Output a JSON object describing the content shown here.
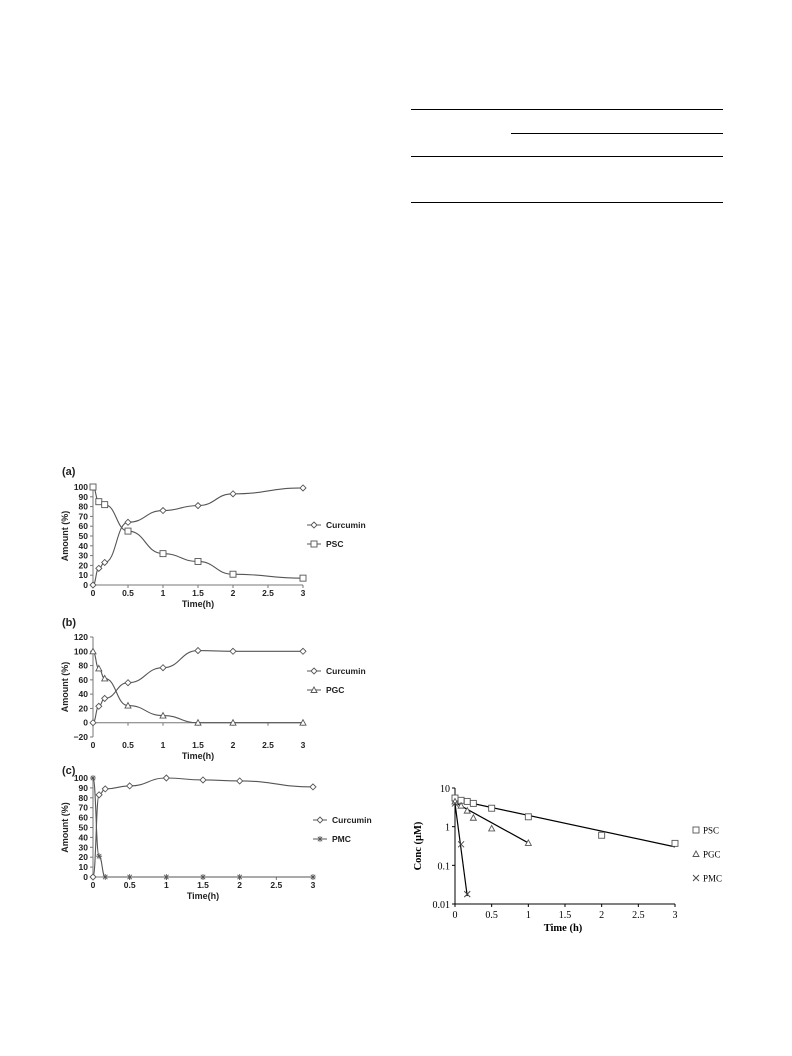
{
  "chart_data": [
    {
      "panel": "(a)",
      "type": "line",
      "xlabel": "Time(h)",
      "ylabel": "Amount (%)",
      "xlim": [
        0,
        3
      ],
      "ylim": [
        0,
        100
      ],
      "xticks": [
        0,
        0.5,
        1,
        1.5,
        2,
        2.5,
        3
      ],
      "yticks": [
        0,
        10,
        20,
        30,
        40,
        50,
        60,
        70,
        80,
        90,
        100
      ],
      "series": [
        {
          "name": "Curcumin",
          "marker": "diamond",
          "x": [
            0,
            0.083,
            0.167,
            0.5,
            1,
            1.5,
            2,
            3
          ],
          "y": [
            0,
            17,
            23,
            64,
            76,
            81,
            93,
            99
          ]
        },
        {
          "name": "PSC",
          "marker": "square",
          "x": [
            0,
            0.083,
            0.167,
            0.5,
            1,
            1.5,
            2,
            3
          ],
          "y": [
            100,
            85,
            82,
            55,
            32,
            24,
            11,
            7
          ]
        }
      ],
      "legend": "right"
    },
    {
      "panel": "(b)",
      "type": "line",
      "xlabel": "Time(h)",
      "ylabel": "Amount (%)",
      "xlim": [
        0,
        3
      ],
      "ylim": [
        -20,
        120
      ],
      "xticks": [
        0,
        0.5,
        1,
        1.5,
        2,
        2.5,
        3
      ],
      "yticks": [
        -20,
        0,
        20,
        40,
        60,
        80,
        100,
        120
      ],
      "series": [
        {
          "name": "Curcumin",
          "marker": "diamond",
          "x": [
            0,
            0.083,
            0.167,
            0.5,
            1,
            1.5,
            2,
            3
          ],
          "y": [
            0,
            23,
            34,
            56,
            77,
            101,
            100,
            100
          ]
        },
        {
          "name": "PGC",
          "marker": "triangle",
          "x": [
            0,
            0.083,
            0.167,
            0.5,
            1,
            1.5,
            2,
            3
          ],
          "y": [
            100,
            76,
            62,
            24,
            10,
            0,
            0,
            0
          ]
        }
      ],
      "legend": "right"
    },
    {
      "panel": "(c)",
      "type": "line",
      "xlabel": "Time(h)",
      "ylabel": "Amount (%)",
      "xlim": [
        0,
        3
      ],
      "ylim": [
        0,
        100
      ],
      "xticks": [
        0,
        0.5,
        1,
        1.5,
        2,
        2.5,
        3
      ],
      "yticks": [
        0,
        10,
        20,
        30,
        40,
        50,
        60,
        70,
        80,
        90,
        100
      ],
      "series": [
        {
          "name": "Curcumin",
          "marker": "diamond",
          "x": [
            0,
            0.083,
            0.167,
            0.5,
            1,
            1.5,
            2,
            3
          ],
          "y": [
            0,
            83,
            89,
            92,
            100,
            98,
            97,
            91
          ]
        },
        {
          "name": "PMC",
          "marker": "star",
          "x": [
            0,
            0.083,
            0.167,
            0.5,
            1,
            1.5,
            2,
            3
          ],
          "y": [
            100,
            21,
            0,
            0,
            0,
            0,
            0,
            0
          ]
        }
      ],
      "legend": "right"
    },
    {
      "type": "scatter",
      "scale": "log-y",
      "xlabel": "Time (h)",
      "ylabel": "Conc (μM)",
      "xlim": [
        0,
        3
      ],
      "ylim": [
        0.01,
        10
      ],
      "xticks": [
        0,
        0.5,
        1,
        1.5,
        2,
        2.5,
        3
      ],
      "yticks": [
        0.01,
        0.1,
        1,
        10
      ],
      "series": [
        {
          "name": "PSC",
          "marker": "square",
          "x": [
            0,
            0.083,
            0.167,
            0.25,
            0.5,
            1,
            2,
            3
          ],
          "y": [
            5.5,
            4.8,
            4.5,
            4.0,
            3.0,
            1.8,
            0.6,
            0.37
          ],
          "fit": [
            [
              0,
              5.0
            ],
            [
              3,
              0.3
            ]
          ]
        },
        {
          "name": "PGC",
          "marker": "triangle",
          "x": [
            0,
            0.083,
            0.167,
            0.25,
            0.5,
            1
          ],
          "y": [
            4.5,
            3.5,
            2.6,
            1.7,
            0.9,
            0.38
          ],
          "fit": [
            [
              0,
              4.2
            ],
            [
              1,
              0.38
            ]
          ]
        },
        {
          "name": "PMC",
          "marker": "x",
          "x": [
            0,
            0.083,
            0.167
          ],
          "y": [
            4.0,
            0.35,
            0.018
          ],
          "fit": [
            [
              0,
              4.0
            ],
            [
              0.167,
              0.016
            ]
          ]
        }
      ],
      "legend": "right"
    }
  ]
}
